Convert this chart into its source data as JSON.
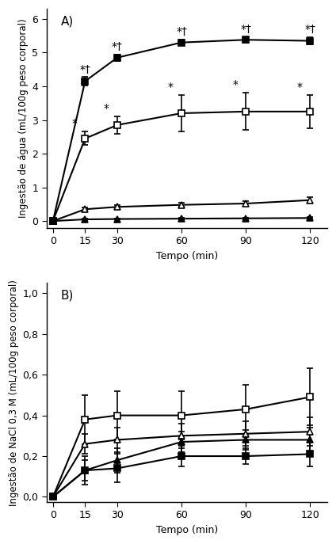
{
  "time": [
    0,
    15,
    30,
    60,
    90,
    120
  ],
  "panel_A": {
    "ylabel": "Ingestão de água (mL/100g peso corporal)",
    "xlabel": "Tempo (min)",
    "ylim": [
      -0.2,
      6.3
    ],
    "yticks": [
      0,
      1,
      2,
      3,
      4,
      5,
      6
    ],
    "label": "A)",
    "series": {
      "filled_square": {
        "y": [
          0,
          4.15,
          4.85,
          5.3,
          5.38,
          5.35
        ],
        "yerr": [
          0,
          0.12,
          0.1,
          0.08,
          0.08,
          0.1
        ],
        "marker": "s",
        "filled": true,
        "color": "black",
        "annotations": [
          "",
          "*†",
          "*†",
          "*†",
          "*†",
          "*†"
        ]
      },
      "open_square": {
        "y": [
          0,
          2.45,
          2.85,
          3.2,
          3.25,
          3.25
        ],
        "yerr": [
          0,
          0.2,
          0.25,
          0.55,
          0.55,
          0.5
        ],
        "marker": "s",
        "filled": false,
        "color": "black",
        "annotations": [
          "",
          "*",
          "*",
          "*",
          "*",
          "*"
        ]
      },
      "open_triangle": {
        "y": [
          0,
          0.35,
          0.42,
          0.48,
          0.52,
          0.62
        ],
        "yerr": [
          0,
          0.05,
          0.05,
          0.06,
          0.06,
          0.08
        ],
        "marker": "^",
        "filled": false,
        "color": "black"
      },
      "filled_triangle": {
        "y": [
          0,
          0.05,
          0.06,
          0.07,
          0.08,
          0.09
        ],
        "yerr": [
          0,
          0.02,
          0.02,
          0.02,
          0.02,
          0.02
        ],
        "marker": "^",
        "filled": true,
        "color": "black"
      }
    }
  },
  "panel_B": {
    "ylabel": "Ingestão de NaCl 0,3 M (mL/100g peso corporal)",
    "xlabel": "Tempo (min)",
    "ylim": [
      -0.025,
      1.05
    ],
    "yticks": [
      0.0,
      0.2,
      0.4,
      0.6,
      0.8,
      1.0
    ],
    "ytick_labels": [
      "0,0",
      "0,2",
      "0,4",
      "0,6",
      "0,8",
      "1,0"
    ],
    "label": "B)",
    "series": {
      "open_square": {
        "y": [
          0,
          0.38,
          0.4,
          0.4,
          0.43,
          0.49
        ],
        "yerr": [
          0,
          0.12,
          0.12,
          0.12,
          0.12,
          0.14
        ],
        "marker": "s",
        "filled": false,
        "color": "black"
      },
      "open_triangle": {
        "y": [
          0,
          0.26,
          0.28,
          0.3,
          0.31,
          0.32
        ],
        "yerr": [
          0,
          0.05,
          0.06,
          0.06,
          0.06,
          0.07
        ],
        "marker": "^",
        "filled": false,
        "color": "black"
      },
      "filled_triangle": {
        "y": [
          0,
          0.13,
          0.18,
          0.27,
          0.28,
          0.28
        ],
        "yerr": [
          0,
          0.05,
          0.06,
          0.05,
          0.05,
          0.06
        ],
        "marker": "^",
        "filled": true,
        "color": "black"
      },
      "filled_square": {
        "y": [
          0,
          0.13,
          0.14,
          0.2,
          0.2,
          0.21
        ],
        "yerr": [
          0,
          0.07,
          0.07,
          0.05,
          0.04,
          0.06
        ],
        "marker": "s",
        "filled": true,
        "color": "black"
      }
    }
  },
  "figure_bg": "white",
  "font_size": 9,
  "annotation_fontsize": 10,
  "linewidth": 1.5,
  "markersize": 6,
  "capsize": 3,
  "elinewidth": 1.2,
  "capthick": 1.0
}
